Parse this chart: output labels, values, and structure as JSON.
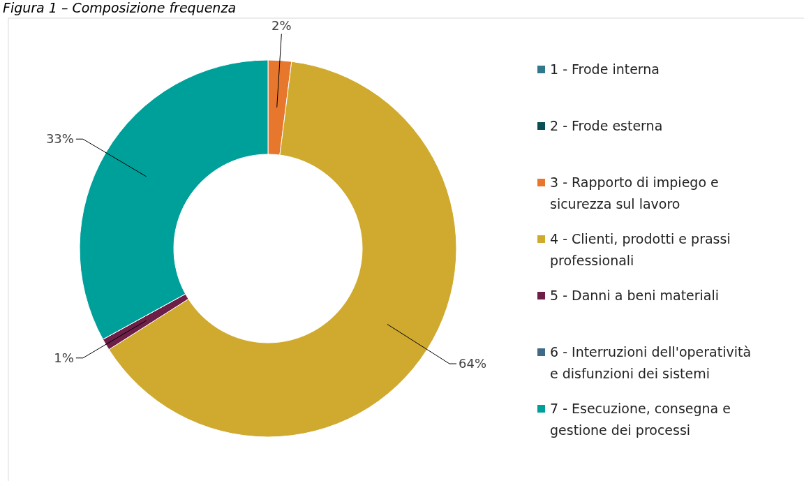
{
  "chart_data": {
    "type": "donut",
    "title": "Figura 1 – Composizione frequenza",
    "categories": [
      "1 - Frode interna",
      "2 - Frode esterna",
      "3 - Rapporto di impiego e sicurezza sul lavoro",
      "4 - Clienti, prodotti e prassi professionali",
      "5 - Danni a beni materiali",
      "6 - Interruzioni dell'operatività e disfunzioni dei sistemi",
      "7 - Esecuzione, consegna e gestione dei processi"
    ],
    "values": [
      0,
      0,
      2,
      64,
      1,
      0,
      33
    ],
    "colors": [
      "#31788a",
      "#0b4f55",
      "#e8772e",
      "#cfaa2f",
      "#6d1f47",
      "#3f6a87",
      "#00a09a"
    ],
    "value_labels": [
      null,
      null,
      "2%",
      "64%",
      "1%",
      null,
      "33%"
    ],
    "legend": "right"
  }
}
